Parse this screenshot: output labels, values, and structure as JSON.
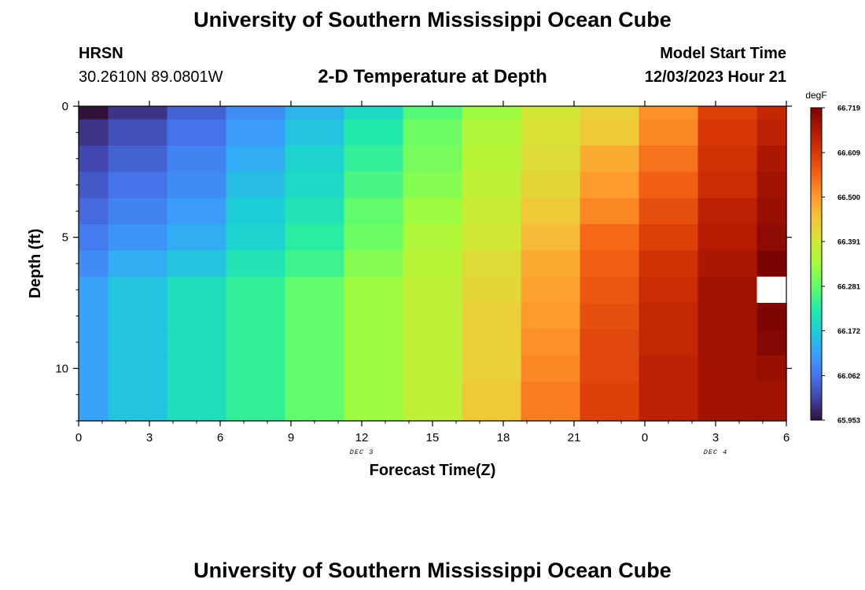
{
  "header": {
    "title": "University of Southern Mississippi Ocean Cube",
    "station": "HRSN",
    "coords": "30.2610N  89.0801W",
    "plot_title": "2-D Temperature at Depth",
    "model_start_label": "Model Start Time",
    "model_start_value": "12/03/2023 Hour 21"
  },
  "footer": {
    "title": "University of Southern Mississippi Ocean Cube"
  },
  "chart_data": {
    "type": "heatmap",
    "title": "2-D Temperature at Depth",
    "xlabel": "Forecast Time(Z)",
    "ylabel": "Depth (ft)",
    "x_tick_labels": [
      "0",
      "3",
      "6",
      "9",
      "12",
      "15",
      "18",
      "21",
      "0",
      "3",
      "6"
    ],
    "x_hours": [
      0,
      3,
      6,
      9,
      12,
      15,
      18,
      21,
      24,
      27,
      30
    ],
    "x_range": [
      0,
      30
    ],
    "date_labels": [
      {
        "text": "DEC 3",
        "hour": 12
      },
      {
        "text": "DEC 4",
        "hour": 27
      }
    ],
    "y_ticks": [
      0,
      5,
      10
    ],
    "y_range": [
      0,
      12
    ],
    "y_reversed": true,
    "time_hours": [
      0,
      2.5,
      5,
      7.5,
      10,
      12.5,
      15,
      17.5,
      20,
      22.5,
      25,
      27.5,
      30
    ],
    "depth_ft": [
      0,
      1,
      2,
      3,
      4,
      5,
      6,
      7,
      8,
      9,
      10,
      11,
      12
    ],
    "colorbar": {
      "unit": "degF",
      "min": 65.953,
      "max": 66.719,
      "tick_labels": [
        "66.719",
        "66.609",
        "66.500",
        "66.391",
        "66.281",
        "66.172",
        "66.062",
        "65.953"
      ],
      "tick_values": [
        66.719,
        66.609,
        66.5,
        66.391,
        66.281,
        66.172,
        66.062,
        65.953
      ],
      "colors": [
        "#30123b",
        "#4145ab",
        "#4675ed",
        "#39a2fc",
        "#1bcfd4",
        "#24eca6",
        "#61fc6c",
        "#a4fc3b",
        "#d1e834",
        "#f3c63a",
        "#fe9b2d",
        "#f36315",
        "#d93806",
        "#b11901",
        "#7a0402"
      ]
    },
    "missing_cells": [
      {
        "time_hour": 30,
        "depth_ft": 7
      }
    ],
    "values": [
      [
        65.953,
        65.99,
        66.04,
        66.09,
        66.14,
        66.19,
        66.27,
        66.33,
        66.39,
        66.43,
        66.51,
        66.6,
        66.64
      ],
      [
        65.99,
        66.02,
        66.06,
        66.11,
        66.16,
        66.22,
        66.29,
        66.35,
        66.4,
        66.44,
        66.52,
        66.61,
        66.65
      ],
      [
        66.01,
        66.04,
        66.08,
        66.13,
        66.18,
        66.24,
        66.3,
        66.36,
        66.41,
        66.48,
        66.54,
        66.62,
        66.67
      ],
      [
        66.03,
        66.06,
        66.09,
        66.15,
        66.19,
        66.26,
        66.31,
        66.37,
        66.42,
        66.5,
        66.56,
        66.63,
        66.68
      ],
      [
        66.05,
        66.08,
        66.11,
        66.17,
        66.21,
        66.28,
        66.33,
        66.38,
        66.44,
        66.52,
        66.58,
        66.65,
        66.69
      ],
      [
        66.07,
        66.1,
        66.13,
        66.18,
        66.23,
        66.29,
        66.35,
        66.39,
        66.46,
        66.55,
        66.6,
        66.66,
        66.7
      ],
      [
        66.09,
        66.13,
        66.16,
        66.21,
        66.25,
        66.31,
        66.36,
        66.41,
        66.48,
        66.56,
        66.62,
        66.67,
        66.719
      ],
      [
        66.12,
        66.16,
        66.2,
        66.24,
        66.28,
        66.33,
        66.37,
        66.42,
        66.49,
        66.57,
        66.63,
        66.68,
        null
      ],
      [
        66.12,
        66.16,
        66.2,
        66.24,
        66.28,
        66.33,
        66.37,
        66.43,
        66.5,
        66.58,
        66.64,
        66.68,
        66.715
      ],
      [
        66.12,
        66.16,
        66.2,
        66.24,
        66.28,
        66.33,
        66.37,
        66.43,
        66.51,
        66.59,
        66.64,
        66.68,
        66.71
      ],
      [
        66.12,
        66.16,
        66.2,
        66.24,
        66.28,
        66.33,
        66.37,
        66.43,
        66.52,
        66.59,
        66.65,
        66.68,
        66.69
      ],
      [
        66.12,
        66.16,
        66.2,
        66.24,
        66.28,
        66.33,
        66.37,
        66.44,
        66.53,
        66.6,
        66.65,
        66.68,
        66.68
      ],
      [
        66.12,
        66.16,
        66.2,
        66.24,
        66.28,
        66.33,
        66.37,
        66.44,
        66.53,
        66.6,
        66.65,
        66.68,
        66.68
      ]
    ]
  }
}
